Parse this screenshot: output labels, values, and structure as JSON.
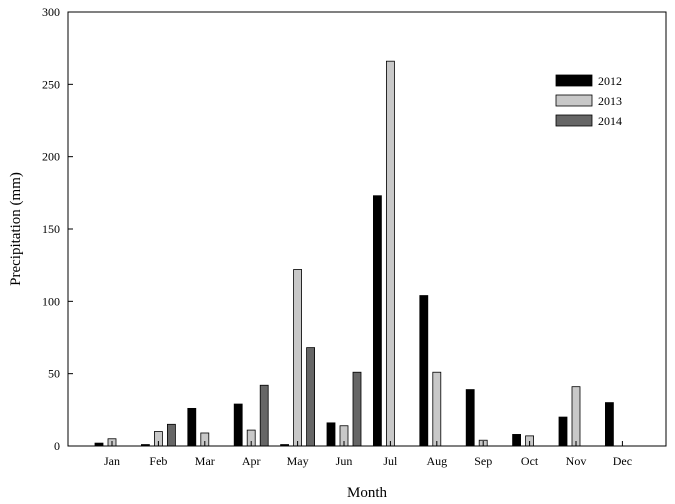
{
  "chart_data": {
    "type": "bar",
    "xlabel": "Month",
    "ylabel": "Precipitation (mm)",
    "ylim": [
      0,
      300
    ],
    "yticks": [
      0,
      50,
      100,
      150,
      200,
      250,
      300
    ],
    "categories": [
      "Jan",
      "Feb",
      "Mar",
      "Apr",
      "May",
      "Jun",
      "Jul",
      "Aug",
      "Sep",
      "Oct",
      "Nov",
      "Dec"
    ],
    "series": [
      {
        "name": "2012",
        "color": "#000000",
        "values": [
          2,
          1,
          26,
          29,
          1,
          16,
          173,
          104,
          39,
          8,
          20,
          30
        ]
      },
      {
        "name": "2013",
        "color": "#c8c8c8",
        "values": [
          5,
          10,
          9,
          11,
          122,
          14,
          266,
          51,
          4,
          7,
          41,
          0
        ]
      },
      {
        "name": "2014",
        "color": "#666666",
        "values": [
          0,
          15,
          0,
          42,
          68,
          51,
          0,
          0,
          0,
          0,
          0,
          0
        ]
      }
    ],
    "grid": false,
    "legend_position": "top-right"
  }
}
